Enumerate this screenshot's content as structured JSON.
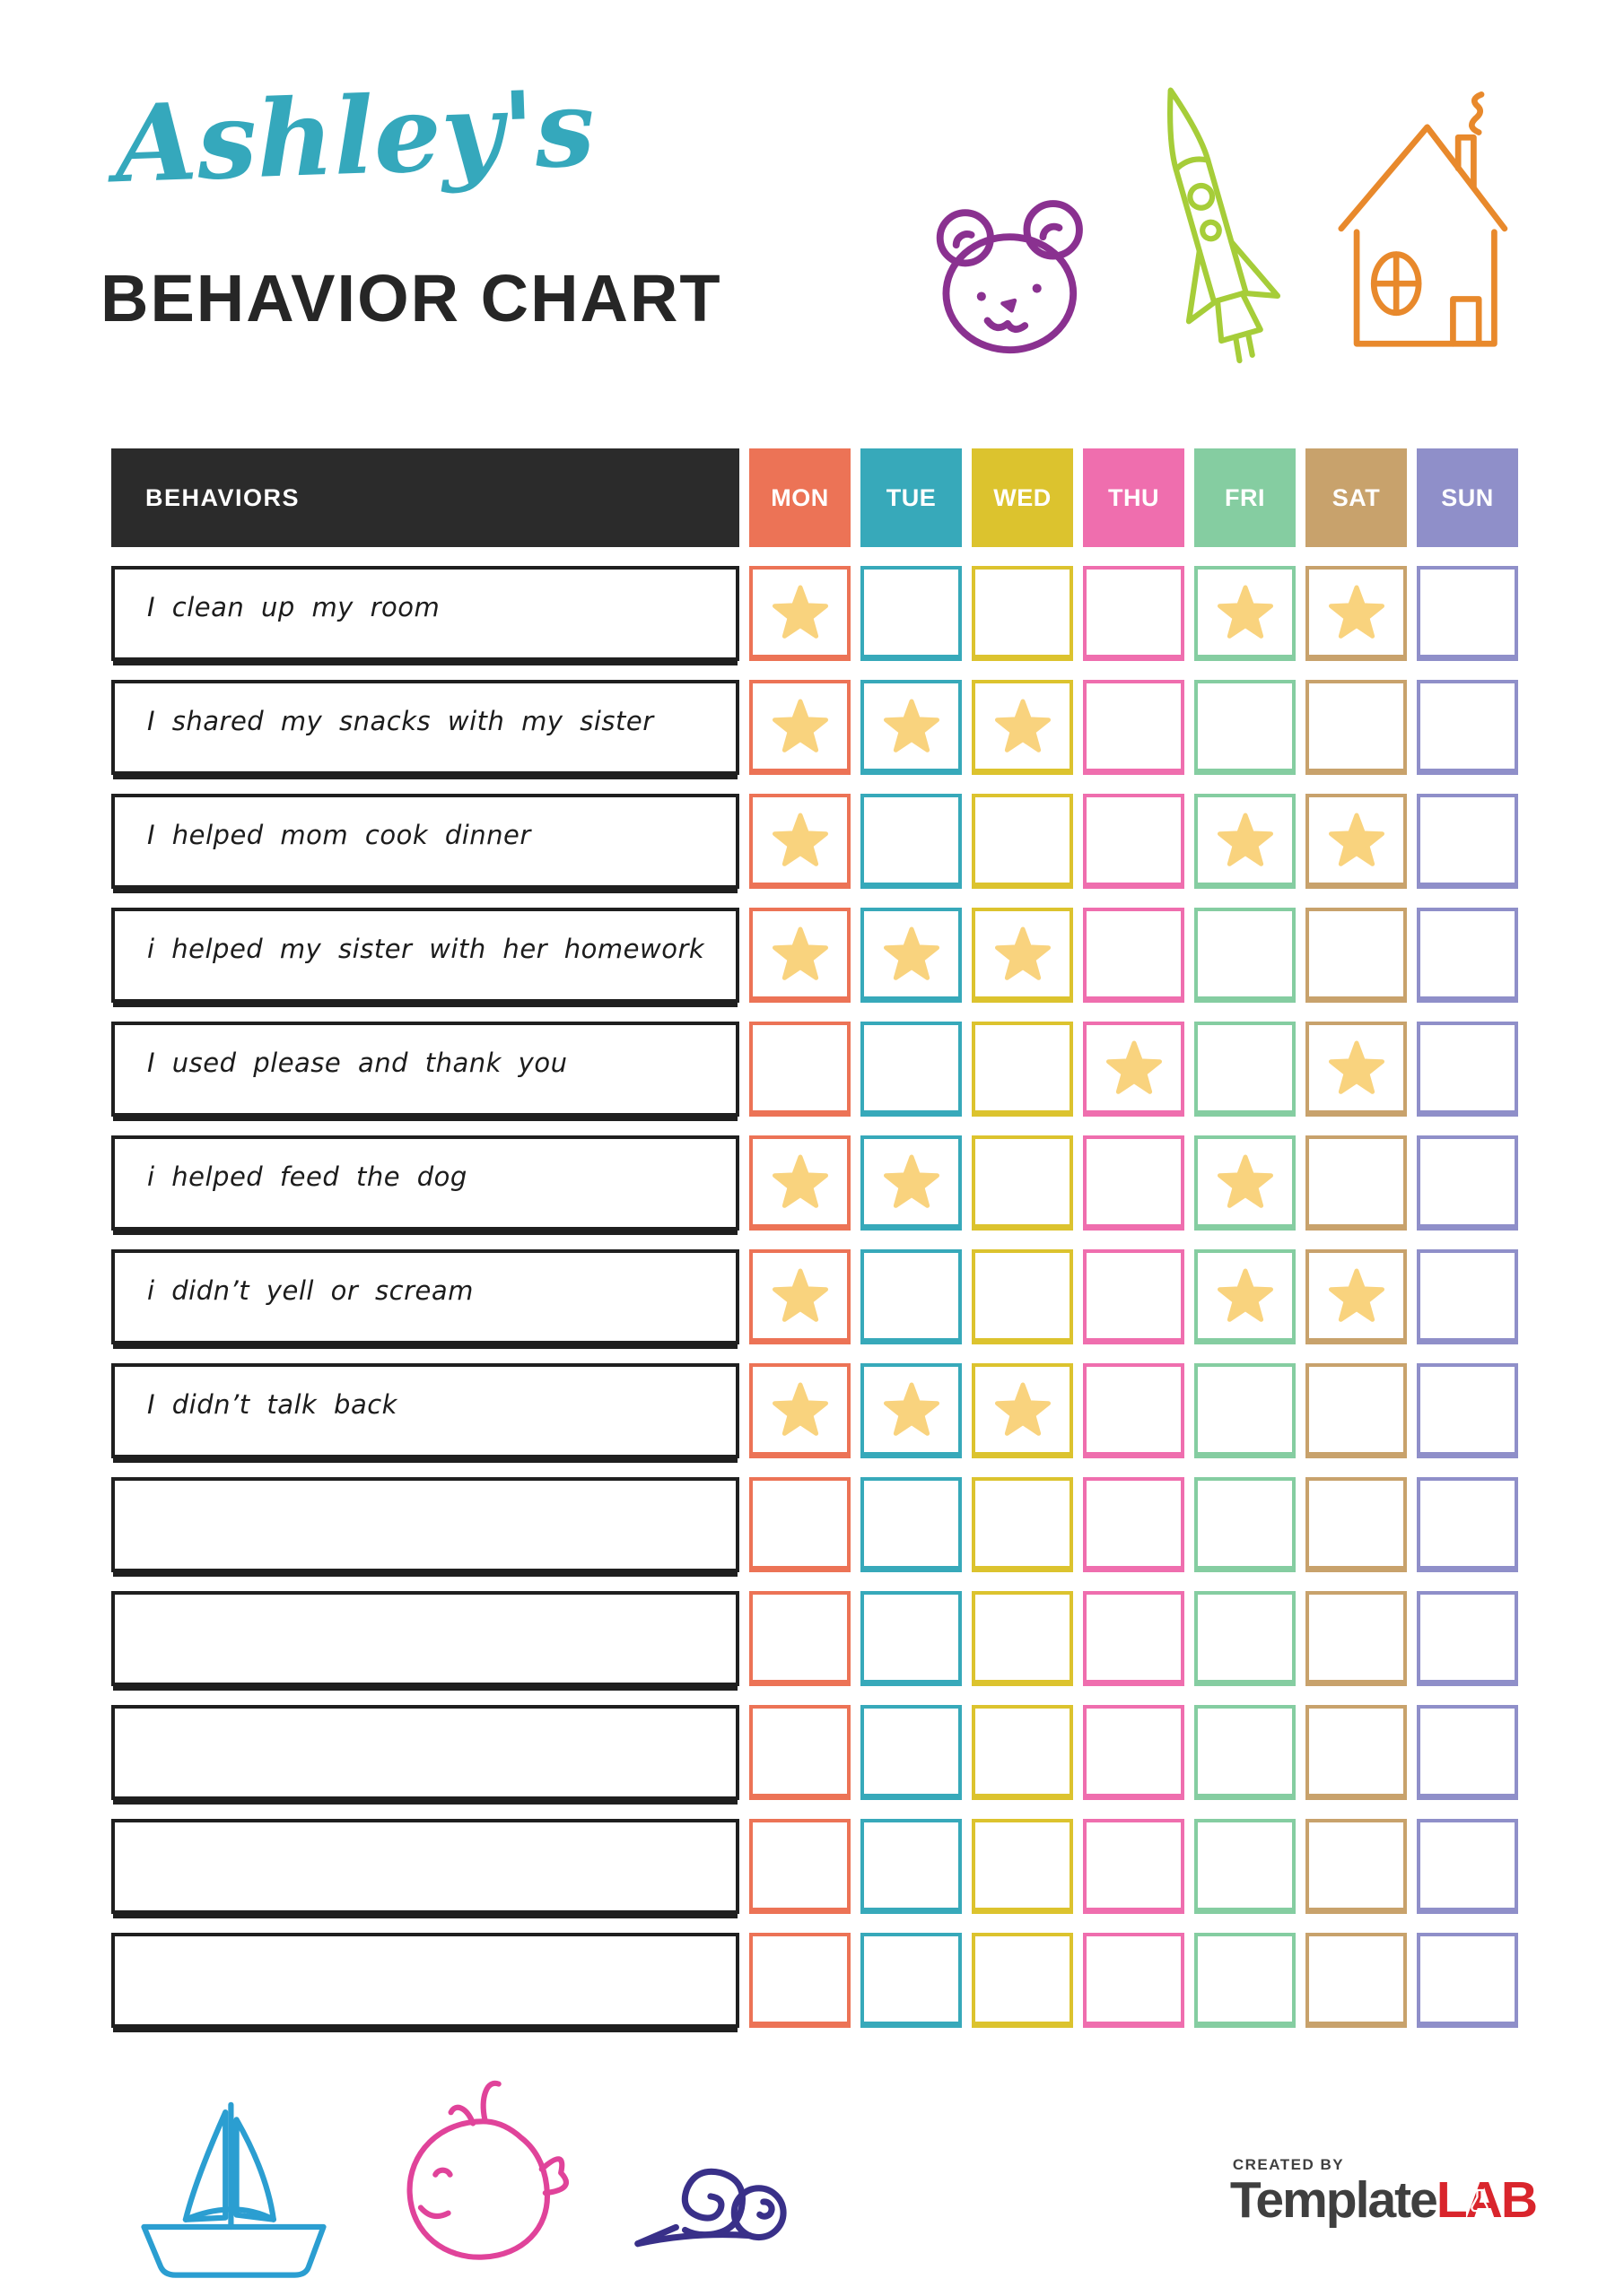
{
  "page": {
    "title_script": "Ashley's",
    "title_main": "BEHAVIOR CHART"
  },
  "colors": {
    "title_script": "#35a8bc",
    "title_main": "#262626",
    "header_bg": "#2b2b2b",
    "star": "#f9d37e",
    "bear": "#8a3190",
    "rocket": "#a6cd39",
    "house": "#e8892c",
    "sailboat": "#2b9ed1",
    "whale": "#e0439a",
    "snail": "#393089",
    "brand_text": "#3f3f3f",
    "brand_accent": "#d9252c"
  },
  "icons": [
    "bear-icon",
    "rocket-icon",
    "house-icon",
    "sailboat-icon",
    "whale-icon",
    "snail-icon",
    "flask-icon",
    "star-icon"
  ],
  "table": {
    "behaviors_header": "BEHAVIORS",
    "days": [
      {
        "label": "MON",
        "color": "#ec7356"
      },
      {
        "label": "TUE",
        "color": "#37a9ba"
      },
      {
        "label": "WED",
        "color": "#dcc32e"
      },
      {
        "label": "THU",
        "color": "#ef6eae"
      },
      {
        "label": "FRI",
        "color": "#85cda1"
      },
      {
        "label": "SAT",
        "color": "#c8a26c"
      },
      {
        "label": "SUN",
        "color": "#8f8fc9"
      }
    ],
    "rows": [
      {
        "label": "I clean up my room",
        "stars": [
          "MON",
          "FRI",
          "SAT"
        ]
      },
      {
        "label": "I shared my snacks with my sister",
        "stars": [
          "MON",
          "TUE",
          "WED"
        ]
      },
      {
        "label": "I helped mom cook dinner",
        "stars": [
          "MON",
          "FRI",
          "SAT"
        ]
      },
      {
        "label": "i helped my sister with her homework",
        "stars": [
          "MON",
          "TUE",
          "WED"
        ]
      },
      {
        "label": "I used please and thank you",
        "stars": [
          "THU",
          "SAT"
        ]
      },
      {
        "label": "i helped feed the dog",
        "stars": [
          "MON",
          "TUE",
          "FRI"
        ]
      },
      {
        "label": "i didn’t yell or scream",
        "stars": [
          "MON",
          "FRI",
          "SAT"
        ]
      },
      {
        "label": "I didn’t talk back",
        "stars": [
          "MON",
          "TUE",
          "WED"
        ]
      },
      {
        "label": "",
        "stars": []
      },
      {
        "label": "",
        "stars": []
      },
      {
        "label": "",
        "stars": []
      },
      {
        "label": "",
        "stars": []
      },
      {
        "label": "",
        "stars": []
      }
    ]
  },
  "footer": {
    "created_by": "CREATED BY",
    "brand_first": "Template",
    "brand_last": "LAB"
  }
}
